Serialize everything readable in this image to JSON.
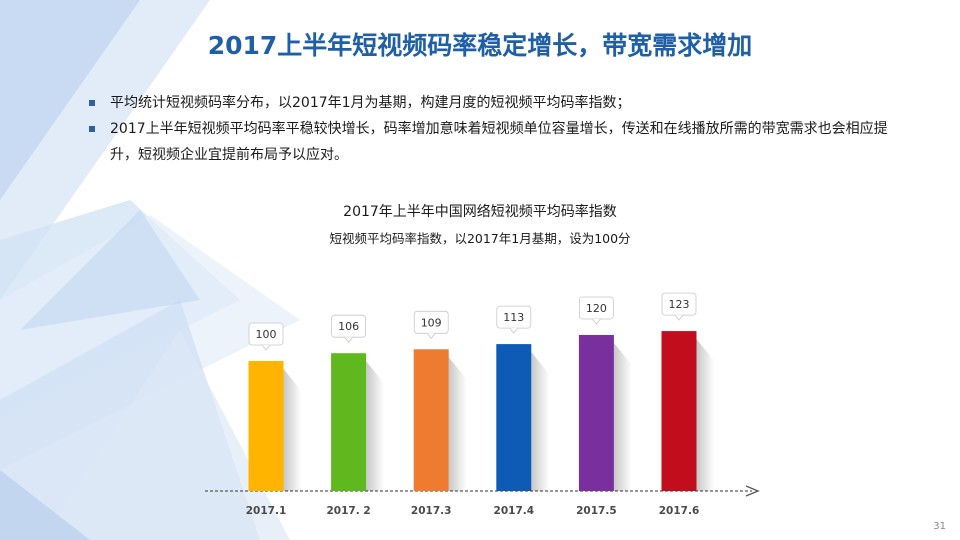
{
  "slide": {
    "title": "2017上半年短视频码率稳定增长，带宽需求增加",
    "bullets": [
      "平均统计短视频码率分布，以2017年1月为基期，构建月度的短视频平均码率指数；",
      "2017上半年短视频平均码率平稳较快增长，码率增加意味着短视频单位容量增长，传送和在线播放所需的带宽需求也会相应提升，短视频企业宜提前布局予以应对。"
    ],
    "page_number": "31"
  },
  "chart_data": {
    "type": "bar",
    "title": "2017年上半年中国网络短视频平均码率指数",
    "subtitle": "短视频平均码率指数，以2017年1月基期，设为100分",
    "categories": [
      "2017.1",
      "2017. 2",
      "2017.3",
      "2017.4",
      "2017.5",
      "2017.6"
    ],
    "values": [
      100,
      106,
      109,
      113,
      120,
      123
    ],
    "data_labels": [
      "100",
      "106",
      "109",
      "113",
      "120",
      "123"
    ],
    "colors": [
      "#ffb400",
      "#5fb81e",
      "#ee7b2f",
      "#0d5bb5",
      "#7a2f9e",
      "#c20d1c"
    ],
    "ylim": [
      0,
      130
    ],
    "grid": false,
    "legend": "none"
  }
}
